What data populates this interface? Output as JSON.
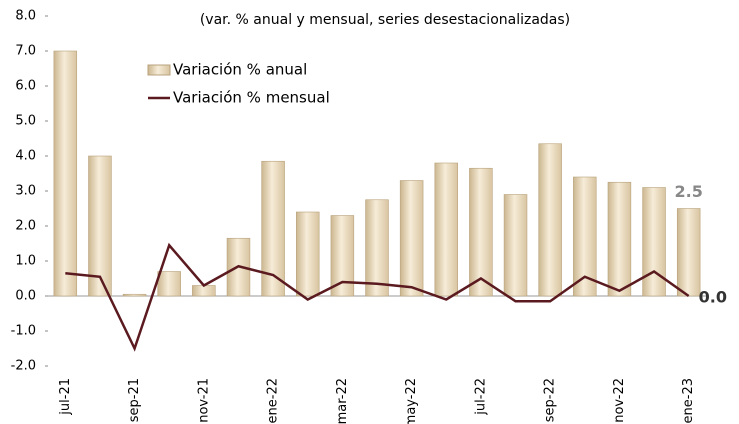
{
  "chart_data": {
    "type": "bar-line",
    "title": "(var. % anual y mensual, series desestacionalizadas)",
    "categories": [
      "jul-21",
      null,
      "sep-21",
      null,
      "nov-21",
      null,
      "ene-22",
      null,
      "mar-22",
      null,
      "may-22",
      null,
      "jul-22",
      null,
      "sep-22",
      null,
      "nov-22",
      null,
      "ene-23"
    ],
    "series": [
      {
        "name": "Variación % anual",
        "type": "bar",
        "color": "#eadbbd",
        "values": [
          7.0,
          4.0,
          0.05,
          0.7,
          0.3,
          1.65,
          3.85,
          2.4,
          2.3,
          2.75,
          3.3,
          3.8,
          3.65,
          2.9,
          4.35,
          3.4,
          3.25,
          3.1,
          2.5
        ],
        "value_labels": [
          null,
          null,
          null,
          null,
          null,
          null,
          null,
          null,
          null,
          null,
          null,
          null,
          null,
          null,
          null,
          null,
          null,
          null,
          "2.5"
        ]
      },
      {
        "name": "Variación % mensual",
        "type": "line",
        "color": "#5a1a1f",
        "values": [
          0.65,
          0.55,
          -1.5,
          1.45,
          0.3,
          0.85,
          0.6,
          -0.1,
          0.4,
          0.35,
          0.25,
          -0.1,
          0.5,
          -0.15,
          -0.15,
          0.55,
          0.15,
          0.7,
          0.0
        ],
        "value_labels": [
          null,
          null,
          null,
          null,
          null,
          null,
          null,
          null,
          null,
          null,
          null,
          null,
          null,
          null,
          null,
          null,
          null,
          null,
          "0.0"
        ]
      }
    ],
    "ylim": [
      -2,
      8
    ],
    "yticks": [
      {
        "value": -2,
        "label": "-2.0"
      },
      {
        "value": -1,
        "label": "-1.0"
      },
      {
        "value": 0,
        "label": "0.0"
      },
      {
        "value": 1,
        "label": "1.0"
      },
      {
        "value": 2,
        "label": "2.0"
      },
      {
        "value": 3,
        "label": "3.0"
      },
      {
        "value": 4,
        "label": "4.0"
      },
      {
        "value": 5,
        "label": "5.0"
      },
      {
        "value": 6,
        "label": "6.0"
      },
      {
        "value": 7,
        "label": "7.0"
      },
      {
        "value": 8,
        "label": "8.0"
      }
    ],
    "grid": false,
    "legend": "top-left"
  }
}
